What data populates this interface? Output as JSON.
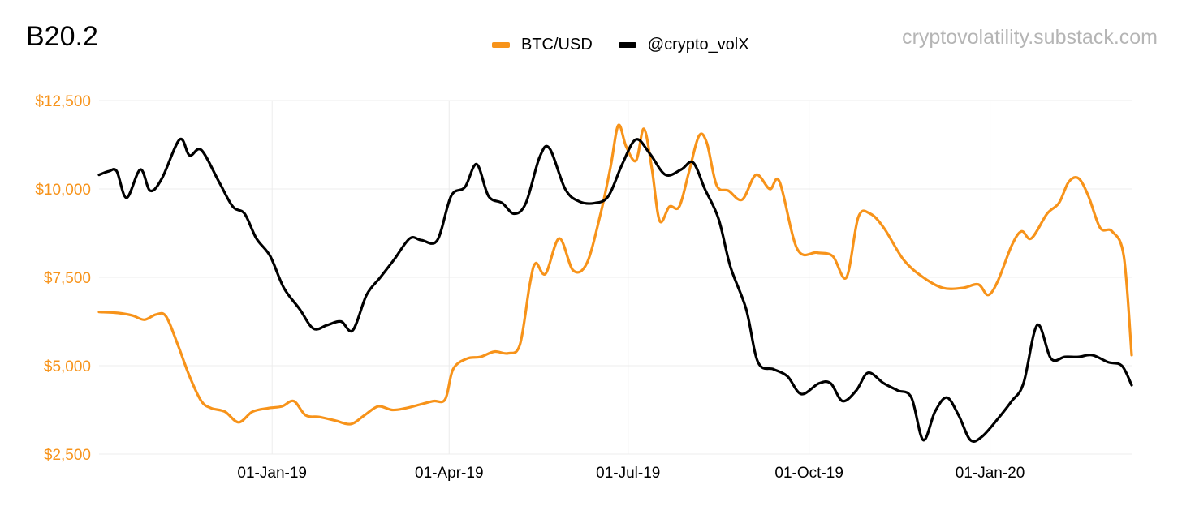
{
  "chart_data": {
    "type": "line",
    "title": "B20.2",
    "watermark": "cryptovolatility.substack.com",
    "xlabel": "",
    "ylabel": "",
    "x_range": [
      "2018-10-05",
      "2020-03-13"
    ],
    "ylim": [
      2500,
      12500
    ],
    "y_ticks": [
      2500,
      5000,
      7500,
      10000,
      12500
    ],
    "y_tick_labels": [
      "$2,500",
      "$5,000",
      "$7,500",
      "$10,000",
      "$12,500"
    ],
    "x_ticks": [
      "2019-01-01",
      "2019-04-01",
      "2019-07-01",
      "2019-10-01",
      "2020-01-01"
    ],
    "x_tick_labels": [
      "01-Jan-19",
      "01-Apr-19",
      "01-Jul-19",
      "01-Oct-19",
      "01-Jan-20"
    ],
    "grid": true,
    "legend_position": "top-center",
    "y_axis_color": "#f7931a",
    "series": [
      {
        "name": "BTC/USD",
        "color": "#f7931a",
        "points": [
          [
            "2018-10-05",
            6520
          ],
          [
            "2018-10-15",
            6490
          ],
          [
            "2018-10-22",
            6420
          ],
          [
            "2018-10-28",
            6300
          ],
          [
            "2018-11-03",
            6450
          ],
          [
            "2018-11-08",
            6400
          ],
          [
            "2018-11-14",
            5600
          ],
          [
            "2018-11-20",
            4700
          ],
          [
            "2018-11-26",
            4000
          ],
          [
            "2018-12-01",
            3800
          ],
          [
            "2018-12-08",
            3700
          ],
          [
            "2018-12-15",
            3400
          ],
          [
            "2018-12-22",
            3700
          ],
          [
            "2018-12-30",
            3800
          ],
          [
            "2019-01-06",
            3850
          ],
          [
            "2019-01-12",
            4000
          ],
          [
            "2019-01-18",
            3600
          ],
          [
            "2019-01-25",
            3550
          ],
          [
            "2019-02-02",
            3450
          ],
          [
            "2019-02-10",
            3350
          ],
          [
            "2019-02-17",
            3600
          ],
          [
            "2019-02-24",
            3850
          ],
          [
            "2019-03-03",
            3750
          ],
          [
            "2019-03-10",
            3800
          ],
          [
            "2019-03-17",
            3900
          ],
          [
            "2019-03-24",
            4000
          ],
          [
            "2019-03-30",
            4050
          ],
          [
            "2019-04-03",
            4900
          ],
          [
            "2019-04-10",
            5200
          ],
          [
            "2019-04-17",
            5250
          ],
          [
            "2019-04-24",
            5400
          ],
          [
            "2019-05-01",
            5350
          ],
          [
            "2019-05-07",
            5600
          ],
          [
            "2019-05-12",
            7300
          ],
          [
            "2019-05-15",
            7900
          ],
          [
            "2019-05-20",
            7600
          ],
          [
            "2019-05-27",
            8600
          ],
          [
            "2019-06-03",
            7700
          ],
          [
            "2019-06-10",
            7900
          ],
          [
            "2019-06-17",
            9300
          ],
          [
            "2019-06-22",
            10600
          ],
          [
            "2019-06-26",
            11800
          ],
          [
            "2019-06-30",
            11200
          ],
          [
            "2019-07-05",
            10800
          ],
          [
            "2019-07-09",
            11700
          ],
          [
            "2019-07-13",
            10600
          ],
          [
            "2019-07-17",
            9100
          ],
          [
            "2019-07-22",
            9500
          ],
          [
            "2019-07-27",
            9500
          ],
          [
            "2019-08-01",
            10500
          ],
          [
            "2019-08-06",
            11500
          ],
          [
            "2019-08-10",
            11300
          ],
          [
            "2019-08-15",
            10100
          ],
          [
            "2019-08-21",
            9950
          ],
          [
            "2019-08-28",
            9700
          ],
          [
            "2019-09-04",
            10400
          ],
          [
            "2019-09-11",
            10000
          ],
          [
            "2019-09-16",
            10200
          ],
          [
            "2019-09-25",
            8300
          ],
          [
            "2019-10-05",
            8200
          ],
          [
            "2019-10-13",
            8100
          ],
          [
            "2019-10-20",
            7500
          ],
          [
            "2019-10-26",
            9200
          ],
          [
            "2019-11-01",
            9300
          ],
          [
            "2019-11-08",
            8900
          ],
          [
            "2019-11-18",
            8000
          ],
          [
            "2019-11-28",
            7500
          ],
          [
            "2019-12-08",
            7200
          ],
          [
            "2019-12-18",
            7200
          ],
          [
            "2019-12-26",
            7300
          ],
          [
            "2019-12-31",
            7000
          ],
          [
            "2020-01-05",
            7400
          ],
          [
            "2020-01-12",
            8400
          ],
          [
            "2020-01-17",
            8800
          ],
          [
            "2020-01-22",
            8600
          ],
          [
            "2020-01-30",
            9300
          ],
          [
            "2020-02-05",
            9600
          ],
          [
            "2020-02-10",
            10200
          ],
          [
            "2020-02-15",
            10300
          ],
          [
            "2020-02-20",
            9800
          ],
          [
            "2020-02-26",
            8900
          ],
          [
            "2020-03-03",
            8800
          ],
          [
            "2020-03-09",
            8100
          ],
          [
            "2020-03-13",
            5300
          ]
        ]
      },
      {
        "name": "@crypto_volX",
        "color": "#000000",
        "points": [
          [
            "2018-10-05",
            10400
          ],
          [
            "2018-10-10",
            10500
          ],
          [
            "2018-10-14",
            10500
          ],
          [
            "2018-10-19",
            9750
          ],
          [
            "2018-10-26",
            10550
          ],
          [
            "2018-10-31",
            9950
          ],
          [
            "2018-11-06",
            10300
          ],
          [
            "2018-11-15",
            11400
          ],
          [
            "2018-11-20",
            10950
          ],
          [
            "2018-11-26",
            11100
          ],
          [
            "2018-12-05",
            10200
          ],
          [
            "2018-12-12",
            9500
          ],
          [
            "2018-12-18",
            9300
          ],
          [
            "2018-12-24",
            8600
          ],
          [
            "2018-12-31",
            8100
          ],
          [
            "2019-01-07",
            7200
          ],
          [
            "2019-01-15",
            6600
          ],
          [
            "2019-01-22",
            6050
          ],
          [
            "2019-01-29",
            6150
          ],
          [
            "2019-02-05",
            6250
          ],
          [
            "2019-02-11",
            6000
          ],
          [
            "2019-02-18",
            7000
          ],
          [
            "2019-02-25",
            7500
          ],
          [
            "2019-03-04",
            8000
          ],
          [
            "2019-03-12",
            8600
          ],
          [
            "2019-03-18",
            8550
          ],
          [
            "2019-03-26",
            8550
          ],
          [
            "2019-04-02",
            9800
          ],
          [
            "2019-04-09",
            10050
          ],
          [
            "2019-04-15",
            10700
          ],
          [
            "2019-04-21",
            9800
          ],
          [
            "2019-04-28",
            9600
          ],
          [
            "2019-05-04",
            9300
          ],
          [
            "2019-05-10",
            9600
          ],
          [
            "2019-05-17",
            10900
          ],
          [
            "2019-05-22",
            11150
          ],
          [
            "2019-05-30",
            10000
          ],
          [
            "2019-06-06",
            9650
          ],
          [
            "2019-06-14",
            9600
          ],
          [
            "2019-06-21",
            9800
          ],
          [
            "2019-06-28",
            10700
          ],
          [
            "2019-07-05",
            11400
          ],
          [
            "2019-07-12",
            11000
          ],
          [
            "2019-07-20",
            10400
          ],
          [
            "2019-07-28",
            10550
          ],
          [
            "2019-08-03",
            10750
          ],
          [
            "2019-08-09",
            10000
          ],
          [
            "2019-08-16",
            9150
          ],
          [
            "2019-08-22",
            7800
          ],
          [
            "2019-08-30",
            6600
          ],
          [
            "2019-09-05",
            5100
          ],
          [
            "2019-09-13",
            4900
          ],
          [
            "2019-09-20",
            4700
          ],
          [
            "2019-09-27",
            4200
          ],
          [
            "2019-10-06",
            4500
          ],
          [
            "2019-10-12",
            4500
          ],
          [
            "2019-10-18",
            4000
          ],
          [
            "2019-10-25",
            4300
          ],
          [
            "2019-10-31",
            4800
          ],
          [
            "2019-11-08",
            4500
          ],
          [
            "2019-11-15",
            4300
          ],
          [
            "2019-11-22",
            4100
          ],
          [
            "2019-11-28",
            2900
          ],
          [
            "2019-12-04",
            3700
          ],
          [
            "2019-12-10",
            4100
          ],
          [
            "2019-12-16",
            3600
          ],
          [
            "2019-12-22",
            2900
          ],
          [
            "2019-12-28",
            3000
          ],
          [
            "2020-01-05",
            3500
          ],
          [
            "2020-01-12",
            4000
          ],
          [
            "2020-01-18",
            4500
          ],
          [
            "2020-01-25",
            6150
          ],
          [
            "2020-02-01",
            5200
          ],
          [
            "2020-02-08",
            5250
          ],
          [
            "2020-02-15",
            5250
          ],
          [
            "2020-02-22",
            5300
          ],
          [
            "2020-03-01",
            5100
          ],
          [
            "2020-03-08",
            5000
          ],
          [
            "2020-03-13",
            4450
          ]
        ]
      }
    ]
  }
}
